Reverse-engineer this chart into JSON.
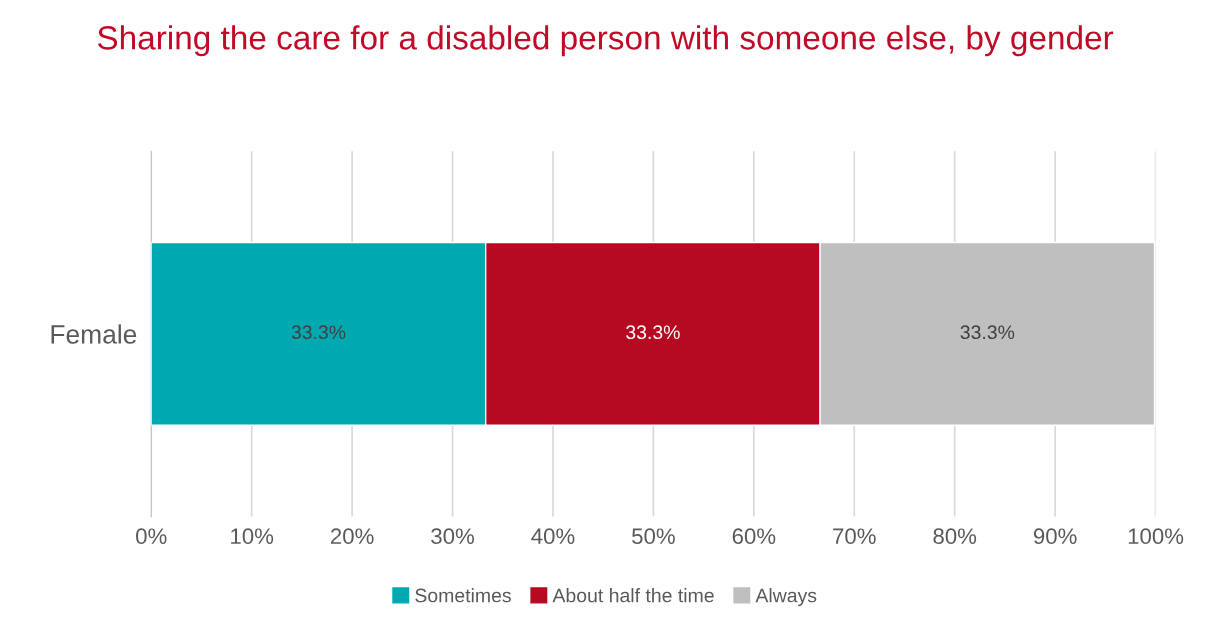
{
  "chart_data": {
    "type": "bar",
    "orientation": "horizontal",
    "stacked": true,
    "title": "Sharing the care for a disabled person with someone else, by gender",
    "categories": [
      "Female"
    ],
    "series": [
      {
        "name": "Sometimes",
        "color": "#00a9b0",
        "values": [
          33.3
        ],
        "value_labels": [
          "33.3%"
        ]
      },
      {
        "name": "About half the time",
        "color": "#b50a22",
        "values": [
          33.3
        ],
        "value_labels": [
          "33.3%"
        ]
      },
      {
        "name": "Always",
        "color": "#bfbfbf",
        "values": [
          33.3
        ],
        "value_labels": [
          "33.3%"
        ]
      }
    ],
    "xlim": [
      0,
      100
    ],
    "xticks": [
      {
        "value": 0,
        "label": "0%"
      },
      {
        "value": 10,
        "label": "10%"
      },
      {
        "value": 20,
        "label": "20%"
      },
      {
        "value": 30,
        "label": "30%"
      },
      {
        "value": 40,
        "label": "40%"
      },
      {
        "value": 50,
        "label": "50%"
      },
      {
        "value": 60,
        "label": "60%"
      },
      {
        "value": 70,
        "label": "70%"
      },
      {
        "value": 80,
        "label": "80%"
      },
      {
        "value": 90,
        "label": "90%"
      },
      {
        "value": 100,
        "label": "100%"
      }
    ],
    "grid": "x",
    "legend": "bottom"
  }
}
